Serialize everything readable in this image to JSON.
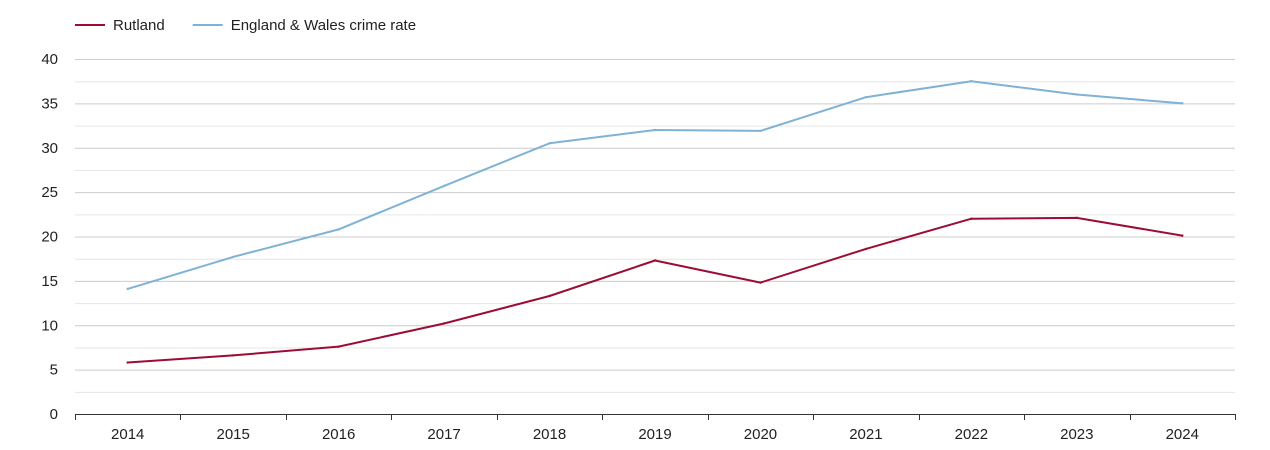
{
  "chart_data": {
    "type": "line",
    "title": "",
    "xlabel": "",
    "ylabel": "",
    "categories": [
      "2014",
      "2015",
      "2016",
      "2017",
      "2018",
      "2019",
      "2020",
      "2021",
      "2022",
      "2023",
      "2024"
    ],
    "ylim": [
      0,
      40
    ],
    "yticks": [
      0,
      5,
      10,
      15,
      20,
      25,
      30,
      35,
      40
    ],
    "grid": true,
    "legend_position": "top-left",
    "series": [
      {
        "name": "Rutland",
        "color": "#9b0d35",
        "values": [
          5.8,
          6.6,
          7.6,
          10.2,
          13.3,
          17.3,
          14.8,
          18.6,
          22.0,
          22.1,
          20.1
        ]
      },
      {
        "name": "England & Wales crime rate",
        "color": "#7fb2d4",
        "values": [
          14.1,
          17.7,
          20.8,
          25.7,
          30.5,
          32.0,
          31.9,
          35.7,
          37.5,
          36.0,
          35.0
        ]
      }
    ]
  }
}
